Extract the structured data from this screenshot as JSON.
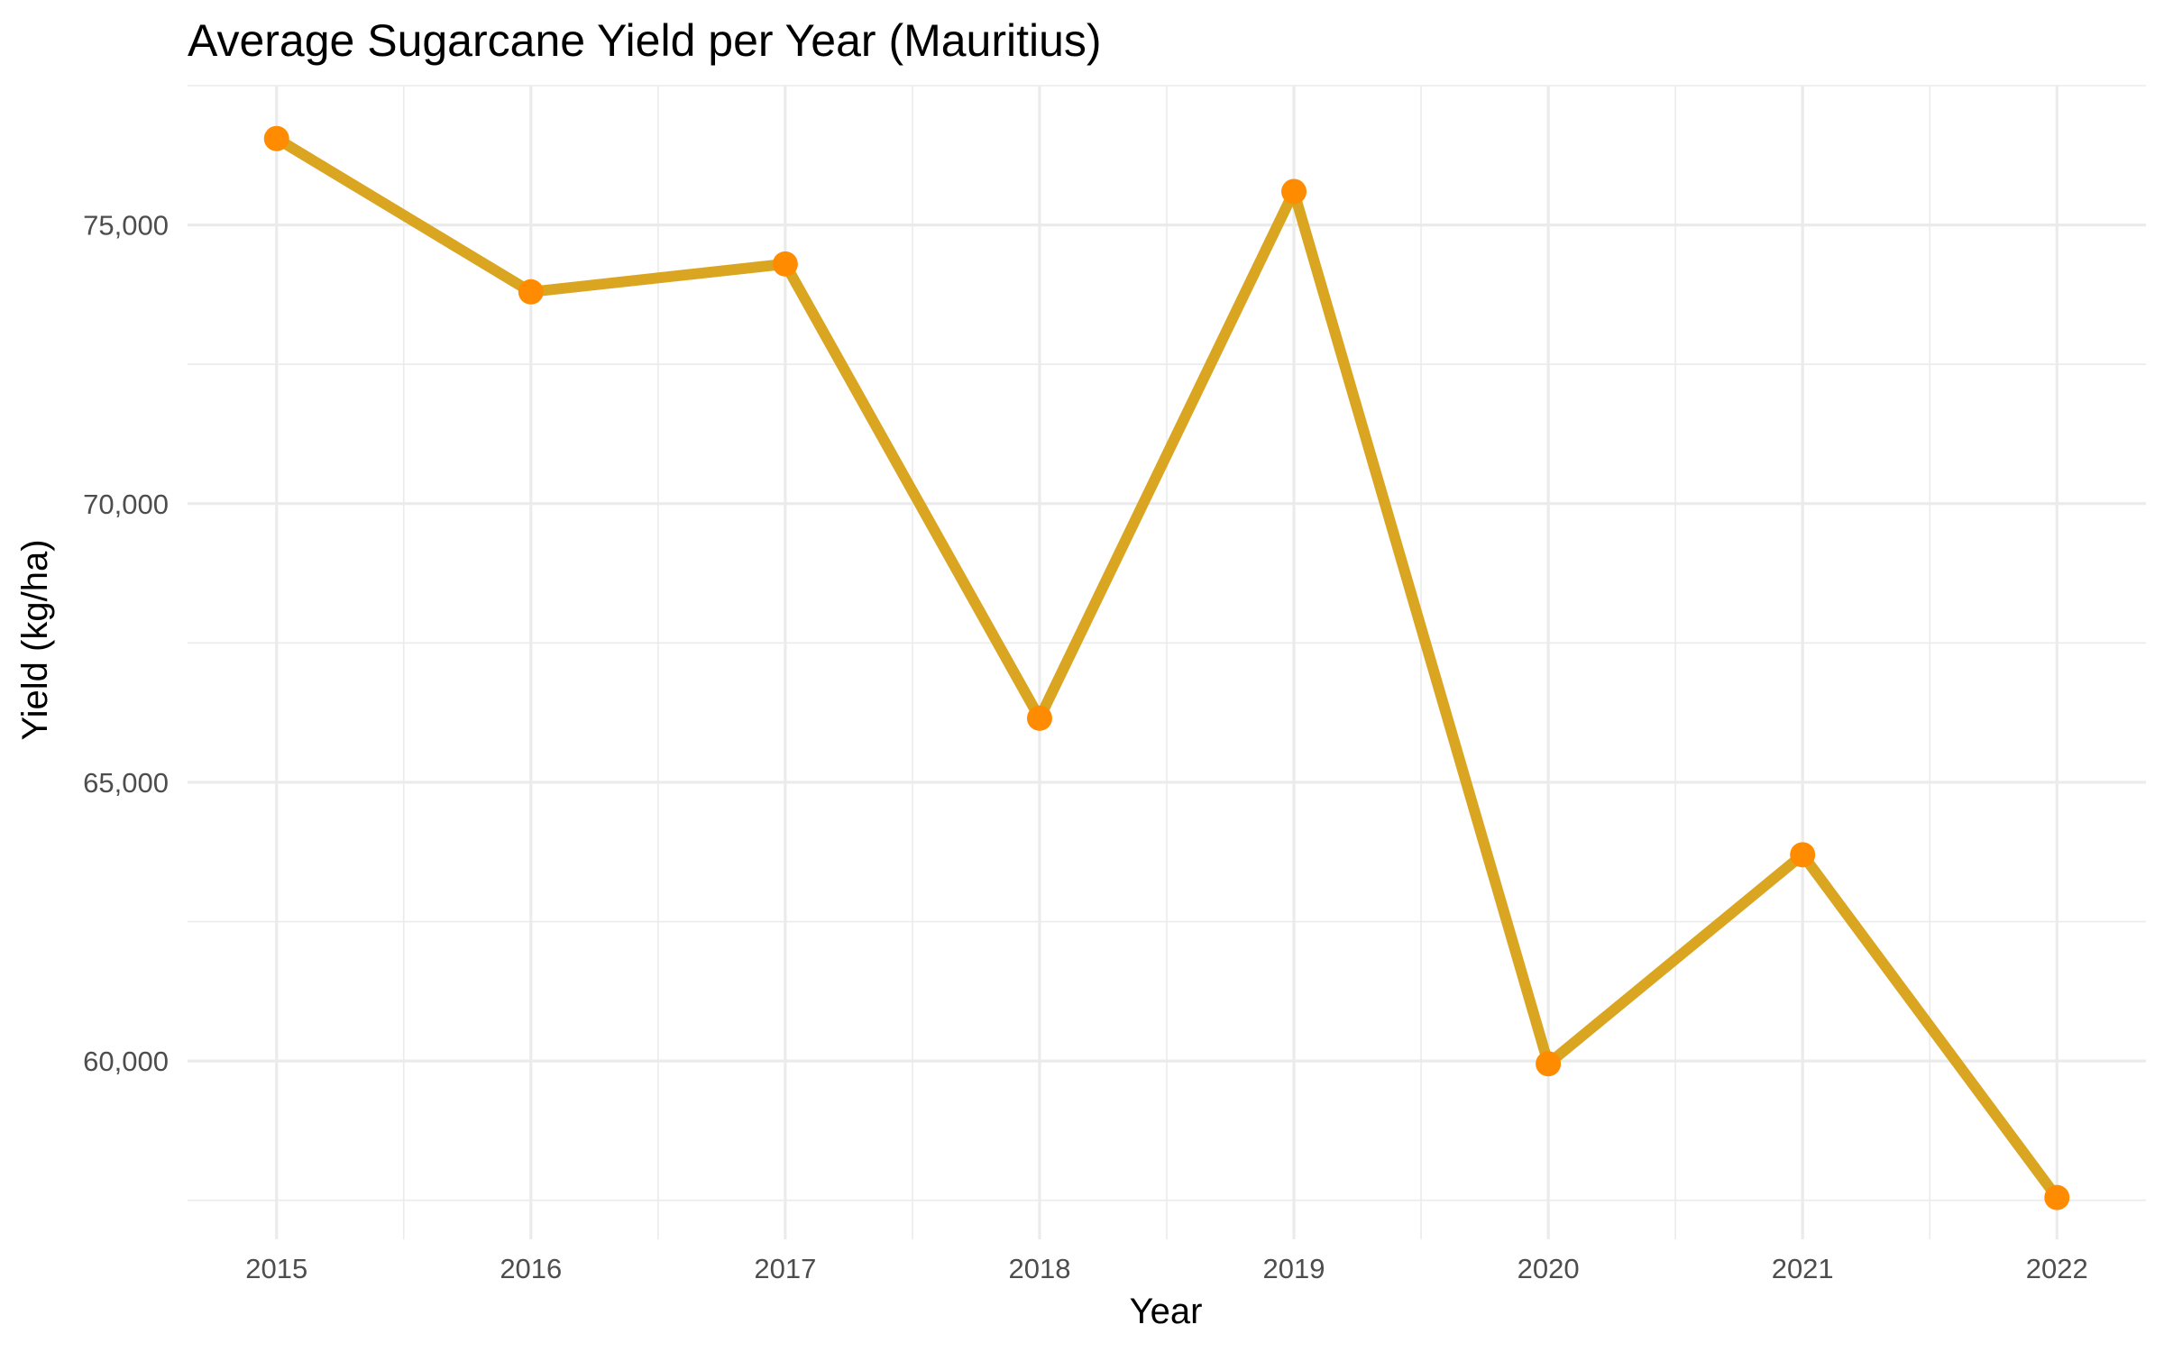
{
  "chart_data": {
    "type": "line",
    "title": "Average Sugarcane Yield per Year (Mauritius)",
    "xlabel": "Year",
    "ylabel": "Yield (kg/ha)",
    "x": [
      2015,
      2016,
      2017,
      2018,
      2019,
      2020,
      2021,
      2022
    ],
    "x_tick_labels": [
      "2015",
      "2016",
      "2017",
      "2018",
      "2019",
      "2020",
      "2021",
      "2022"
    ],
    "xlim": [
      2014.65,
      2022.35
    ],
    "y_ticks": [
      60000,
      65000,
      70000,
      75000
    ],
    "y_tick_labels": [
      "60,000",
      "65,000",
      "70,000",
      "75,000"
    ],
    "ylim": [
      56800,
      77500
    ],
    "series": [
      {
        "values": [
          76550,
          73800,
          74300,
          66150,
          75600,
          59950,
          63700,
          57550
        ],
        "line_color": "#DAA520",
        "point_color": "#FF8C00"
      }
    ],
    "grid": true,
    "legend": "none"
  }
}
